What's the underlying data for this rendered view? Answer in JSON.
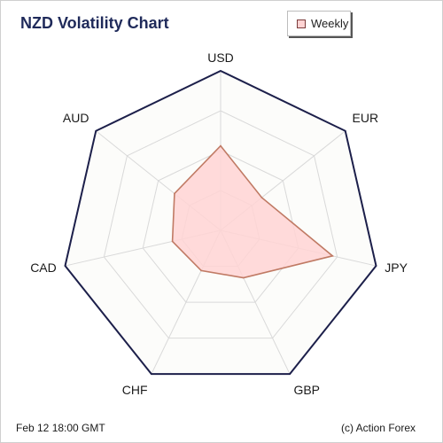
{
  "title": "NZD Volatility Chart",
  "legend": {
    "label": "Weekly"
  },
  "footer": {
    "timestamp": "Feb 12  18:00 GMT",
    "credit": "(c) Action Forex"
  },
  "colors": {
    "outline": "#1c1f4a",
    "grid": "#d9d9d9",
    "fill": "#ffd3d3",
    "series_stroke": "#c07a64"
  },
  "chart_data": {
    "type": "radar",
    "title": "NZD Volatility Chart",
    "categories": [
      "USD",
      "EUR",
      "JPY",
      "GBP",
      "CHF",
      "CAD",
      "AUD"
    ],
    "rlim": [
      0,
      1
    ],
    "grid_levels": 4,
    "series": [
      {
        "name": "Weekly",
        "values": [
          0.53,
          0.33,
          0.72,
          0.33,
          0.28,
          0.31,
          0.37
        ]
      }
    ],
    "legend": "top-right"
  }
}
